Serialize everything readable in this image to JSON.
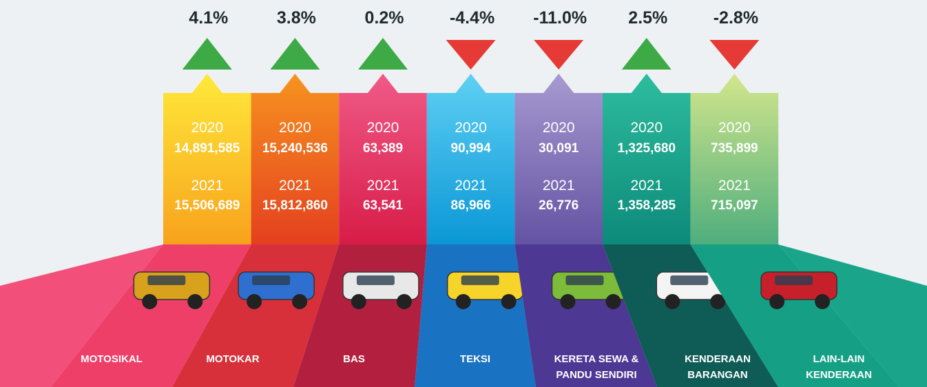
{
  "items": [
    {
      "change": "4.1%",
      "direction": "up",
      "year1": "2020",
      "value1": "14,891,585",
      "year2": "2021",
      "value2": "15,506,689",
      "label": [
        "MOTOSIKAL"
      ]
    },
    {
      "change": "3.8%",
      "direction": "up",
      "year1": "2020",
      "value1": "15,240,536",
      "year2": "2021",
      "value2": "15,812,860",
      "label": [
        "MOTOKAR"
      ]
    },
    {
      "change": "0.2%",
      "direction": "up",
      "year1": "2020",
      "value1": "63,389",
      "year2": "2021",
      "value2": "63,541",
      "label": [
        "BAS"
      ]
    },
    {
      "change": "-4.4%",
      "direction": "down",
      "year1": "2020",
      "value1": "90,994",
      "year2": "2021",
      "value2": "86,966",
      "label": [
        "TEKSI"
      ]
    },
    {
      "change": "-11.0%",
      "direction": "down",
      "year1": "2020",
      "value1": "30,091",
      "year2": "2021",
      "value2": "26,776",
      "label": [
        "KERETA SEWA &",
        "PANDU SENDIRI"
      ]
    },
    {
      "change": "2.5%",
      "direction": "up",
      "year1": "2020",
      "value1": "1,325,680",
      "year2": "2021",
      "value2": "1,358,285",
      "label": [
        "KENDERAAN",
        "BARANGAN"
      ]
    },
    {
      "change": "-2.8%",
      "direction": "down",
      "year1": "2020",
      "value1": "735,899",
      "year2": "2021",
      "value2": "715,097",
      "label": [
        "LAIN-LAIN",
        "KENDERAAN"
      ]
    }
  ]
}
